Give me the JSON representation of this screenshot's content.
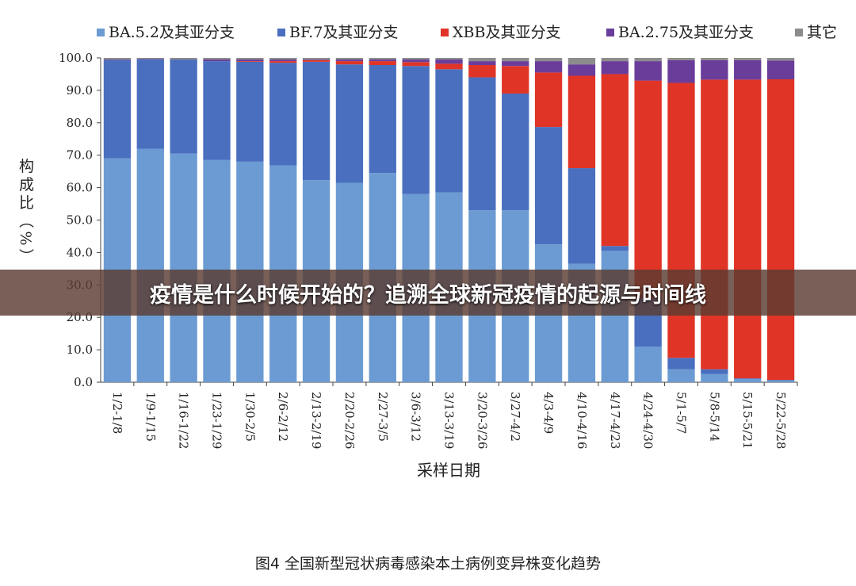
{
  "chart_data": {
    "type": "stacked_bar",
    "ylabel": "构成比（%）",
    "xlabel": "采样日期",
    "categories": [
      "1/2-1/8",
      "1/9-1/15",
      "1/16-1/22",
      "1/23-1/29",
      "1/30-2/5",
      "2/6-2/12",
      "2/13-2/19",
      "2/20-2/26",
      "2/27-3/5",
      "3/6-3/12",
      "3/13-3/19",
      "3/20-3/26",
      "3/27-4/2",
      "4/3-4/9",
      "4/10-4/16",
      "4/17-4/23",
      "4/24-4/30",
      "5/1-5/7",
      "5/8-5/14",
      "5/15-5/21",
      "5/22-5/28"
    ],
    "series": [
      {
        "name": "BA.5.2及其亚分支",
        "color": "#6b9bd2",
        "values": [
          69,
          72,
          70.5,
          68.5,
          68,
          66.8,
          62.3,
          61.5,
          64.5,
          58,
          58.5,
          53,
          53,
          42.5,
          36.5,
          40.5,
          11,
          4,
          2.5,
          1,
          0.5
        ]
      },
      {
        "name": "BF.7及其亚分支",
        "color": "#4a6fbf",
        "values": [
          30.3,
          27.5,
          29,
          30.5,
          30.8,
          31.7,
          36.5,
          36.5,
          33.3,
          39.5,
          38,
          41,
          36,
          36.2,
          29.5,
          1.5,
          15,
          3.5,
          1.5,
          0.2,
          0.2
        ]
      },
      {
        "name": "XBB及其亚分支",
        "color": "#e03426",
        "values": [
          0,
          0,
          0,
          0,
          0.2,
          0.5,
          0.5,
          1,
          1.2,
          1.2,
          1.7,
          3.8,
          8.5,
          16.8,
          28.5,
          53,
          67,
          84.8,
          89.3,
          92.1,
          92.7
        ]
      },
      {
        "name": "BA.2.75及其亚分支",
        "color": "#6a3d9a",
        "values": [
          0.2,
          0.2,
          0,
          0.5,
          0.5,
          0.5,
          0.2,
          0.5,
          0.5,
          0.8,
          1.3,
          1.2,
          1.5,
          3.5,
          3.5,
          4,
          6,
          7,
          6,
          6,
          5.8
        ]
      },
      {
        "name": "其它",
        "color": "#8c8c8c",
        "values": [
          0.5,
          0.3,
          0.5,
          0.5,
          0.5,
          0.5,
          0.5,
          0.5,
          0.5,
          0.5,
          0.5,
          1,
          1,
          1,
          2,
          1,
          1,
          0.7,
          0.7,
          0.7,
          0.8
        ]
      }
    ],
    "ylim": [
      0,
      100
    ],
    "yticks": [
      {
        "value": 0,
        "label": "0.0"
      },
      {
        "value": 10,
        "label": "10.0"
      },
      {
        "value": 20,
        "label": "20.0"
      },
      {
        "value": 30,
        "label": "30.0"
      },
      {
        "value": 40,
        "label": "40.0"
      },
      {
        "value": 50,
        "label": "50.0"
      },
      {
        "value": 60,
        "label": "60.0"
      },
      {
        "value": 70,
        "label": "70.0"
      },
      {
        "value": 80,
        "label": "80.0"
      },
      {
        "value": 90,
        "label": "90.0"
      },
      {
        "value": 100,
        "label": "100.0"
      }
    ],
    "legend": "top"
  },
  "caption": "图4 全国新型冠状病毒感染本土病例变异株变化趋势",
  "banner": {
    "title": "疫情是什么时候开始的？追溯全球新冠疫情的起源与时间线"
  }
}
